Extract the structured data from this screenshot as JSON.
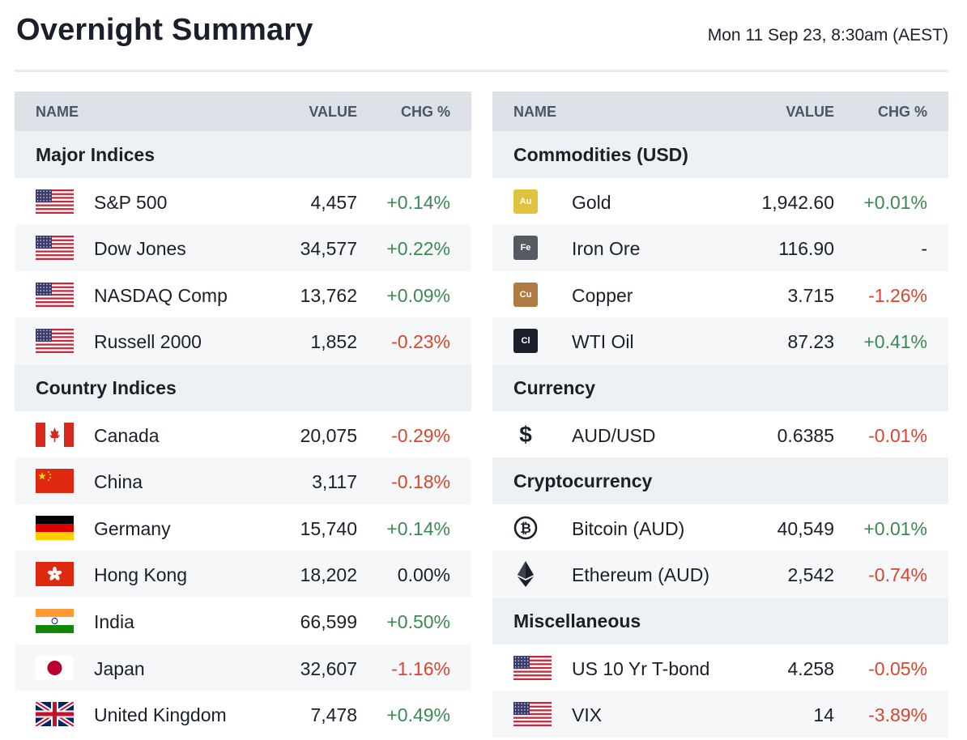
{
  "header": {
    "title": "Overnight Summary",
    "timestamp": "Mon 11 Sep 23, 8:30am (AEST)"
  },
  "columns": {
    "name": "NAME",
    "value": "VALUE",
    "chg": "CHG %"
  },
  "left": {
    "major_title": "Major Indices",
    "major": [
      {
        "name": "S&P 500",
        "value": "4,457",
        "chg": "+0.14%",
        "flag": "us-flag-icon"
      },
      {
        "name": "Dow Jones",
        "value": "34,577",
        "chg": "+0.22%",
        "flag": "us-flag-icon"
      },
      {
        "name": "NASDAQ Comp",
        "value": "13,762",
        "chg": "+0.09%",
        "flag": "us-flag-icon"
      },
      {
        "name": "Russell 2000",
        "value": "1,852",
        "chg": "-0.23%",
        "flag": "us-flag-icon"
      }
    ],
    "country_title": "Country Indices",
    "country": [
      {
        "name": "Canada",
        "value": "20,075",
        "chg": "-0.29%",
        "flag": "canada-flag-icon"
      },
      {
        "name": "China",
        "value": "3,117",
        "chg": "-0.18%",
        "flag": "china-flag-icon"
      },
      {
        "name": "Germany",
        "value": "15,740",
        "chg": "+0.14%",
        "flag": "germany-flag-icon"
      },
      {
        "name": "Hong Kong",
        "value": "18,202",
        "chg": "0.00%",
        "flag": "hong-kong-flag-icon"
      },
      {
        "name": "India",
        "value": "66,599",
        "chg": "+0.50%",
        "flag": "india-flag-icon"
      },
      {
        "name": "Japan",
        "value": "32,607",
        "chg": "-1.16%",
        "flag": "japan-flag-icon"
      },
      {
        "name": "United Kingdom",
        "value": "7,478",
        "chg": "+0.49%",
        "flag": "uk-flag-icon"
      }
    ]
  },
  "right": {
    "commodities_title": "Commodities (USD)",
    "commodities": [
      {
        "name": "Gold",
        "value": "1,942.60",
        "chg": "+0.01%",
        "chip": "Au",
        "color": "#e0c23e"
      },
      {
        "name": "Iron Ore",
        "value": "116.90",
        "chg": "-",
        "chip": "Fe",
        "color": "#555a63"
      },
      {
        "name": "Copper",
        "value": "3.715",
        "chg": "-1.26%",
        "chip": "Cu",
        "color": "#b07a44"
      },
      {
        "name": "WTI Oil",
        "value": "87.23",
        "chg": "+0.41%",
        "chip": "Cl",
        "color": "#1a1f2b"
      }
    ],
    "currency_title": "Currency",
    "currency": [
      {
        "name": "AUD/USD",
        "value": "0.6385",
        "chg": "-0.01%",
        "icon": "dollar-icon",
        "glyph": "$"
      }
    ],
    "crypto_title": "Cryptocurrency",
    "crypto": [
      {
        "name": "Bitcoin (AUD)",
        "value": "40,549",
        "chg": "+0.01%",
        "icon": "bitcoin-icon"
      },
      {
        "name": "Ethereum (AUD)",
        "value": "2,542",
        "chg": "-0.74%",
        "icon": "ethereum-icon"
      }
    ],
    "misc_title": "Miscellaneous",
    "misc": [
      {
        "name": "US 10 Yr T-bond",
        "value": "4.258",
        "chg": "-0.05%",
        "flag": "us-flag-icon"
      },
      {
        "name": "VIX",
        "value": "14",
        "chg": "-3.89%",
        "flag": "us-flag-icon"
      }
    ]
  },
  "colors": {
    "positive": "#3a8a52",
    "negative": "#d9452e",
    "header_bg": "#dde2e8",
    "section_bg": "#eef1f4"
  }
}
